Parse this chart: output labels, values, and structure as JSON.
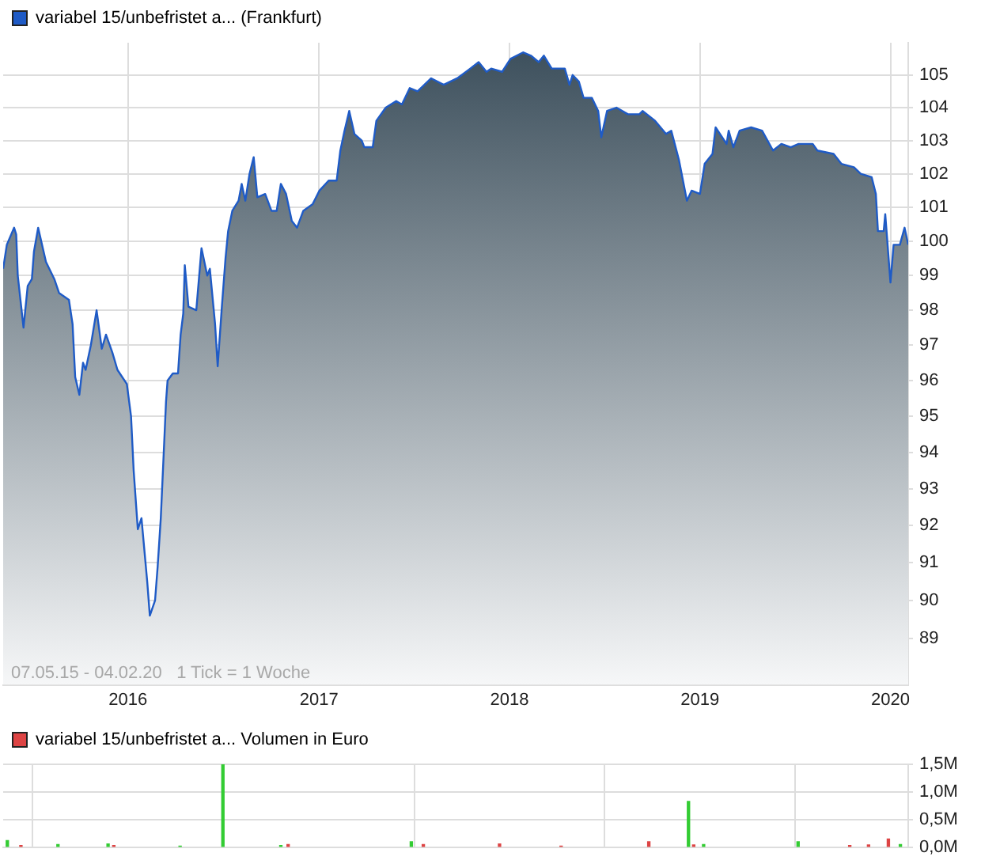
{
  "chart_data": [
    {
      "type": "area",
      "log": "y",
      "grid": true,
      "legend": "top left",
      "xlim": [
        "2015-05-07",
        "2020-02-04"
      ],
      "xticks": [
        {
          "value": "2016-01-01",
          "label": "2016"
        },
        {
          "value": "2017-01-01",
          "label": "2017"
        },
        {
          "value": "2018-01-01",
          "label": "2018"
        },
        {
          "value": "2019-01-01",
          "label": "2019"
        },
        {
          "value": "2020-01-01",
          "label": "2020"
        }
      ],
      "ylim": [
        87.8,
        106
      ],
      "yticks": [
        89,
        90,
        91,
        92,
        93,
        94,
        95,
        96,
        97,
        98,
        99,
        100,
        101,
        102,
        103,
        104,
        105
      ],
      "annotations": [
        "07.05.15 - 04.02.20   1 Tick = 1 Woche"
      ],
      "x": [
        "2015-05-07",
        "2015-05-14",
        "2015-05-28",
        "2015-06-01",
        "2015-06-04",
        "2015-06-15",
        "2015-06-23",
        "2015-07-01",
        "2015-07-05",
        "2015-07-13",
        "2015-07-28",
        "2015-08-13",
        "2015-08-22",
        "2015-09-10",
        "2015-09-17",
        "2015-09-22",
        "2015-09-30",
        "2015-10-07",
        "2015-10-12",
        "2015-10-22",
        "2015-11-02",
        "2015-11-12",
        "2015-11-20",
        "2015-12-02",
        "2015-12-12",
        "2015-12-30",
        "2016-01-07",
        "2016-01-12",
        "2016-01-20",
        "2016-01-27",
        "2016-02-07",
        "2016-02-12",
        "2016-02-22",
        "2016-02-27",
        "2016-03-04",
        "2016-03-10",
        "2016-03-14",
        "2016-03-17",
        "2016-03-27",
        "2016-04-06",
        "2016-04-11",
        "2016-04-16",
        "2016-04-19",
        "2016-04-26",
        "2016-05-11",
        "2016-05-21",
        "2016-06-01",
        "2016-06-06",
        "2016-06-16",
        "2016-06-21",
        "2016-06-29",
        "2016-07-06",
        "2016-07-11",
        "2016-07-19",
        "2016-07-31",
        "2016-08-06",
        "2016-08-13",
        "2016-08-21",
        "2016-08-29",
        "2016-09-05",
        "2016-09-20",
        "2016-10-02",
        "2016-10-12",
        "2016-10-20",
        "2016-10-30",
        "2016-11-10",
        "2016-11-20",
        "2016-12-02",
        "2016-12-20",
        "2017-01-02",
        "2017-01-20",
        "2017-02-04",
        "2017-02-11",
        "2017-02-19",
        "2017-02-28",
        "2017-03-10",
        "2017-03-24",
        "2017-03-29",
        "2017-04-14",
        "2017-04-21",
        "2017-05-09",
        "2017-05-29",
        "2017-06-09",
        "2017-06-24",
        "2017-07-09",
        "2017-08-04",
        "2017-08-28",
        "2017-09-23",
        "2017-10-18",
        "2017-11-03",
        "2017-11-18",
        "2017-11-27",
        "2017-12-18",
        "2018-01-03",
        "2018-01-27",
        "2018-02-11",
        "2018-02-26",
        "2018-03-08",
        "2018-03-23",
        "2018-04-17",
        "2018-04-26",
        "2018-05-02",
        "2018-05-14",
        "2018-05-23",
        "2018-06-08",
        "2018-06-20",
        "2018-06-26",
        "2018-07-07",
        "2018-07-25",
        "2018-08-16",
        "2018-09-07",
        "2018-09-13",
        "2018-10-07",
        "2018-10-28",
        "2018-11-07",
        "2018-11-22",
        "2018-12-07",
        "2018-12-16",
        "2019-01-01",
        "2019-01-10",
        "2019-01-25",
        "2019-01-31",
        "2019-02-21",
        "2019-02-25",
        "2019-03-06",
        "2019-03-18",
        "2019-04-09",
        "2019-04-30",
        "2019-05-21",
        "2019-06-06",
        "2019-06-24",
        "2019-07-09",
        "2019-08-05",
        "2019-08-14",
        "2019-09-14",
        "2019-09-29",
        "2019-10-23",
        "2019-11-05",
        "2019-11-26",
        "2019-12-04",
        "2019-12-08",
        "2019-12-19",
        "2019-12-22",
        "2020-01-01",
        "2020-01-07",
        "2020-01-19",
        "2020-01-28",
        "2020-02-04"
      ],
      "series": [
        {
          "name": "variabel 15/unbefristet a... (Frankfurt)",
          "color": "#1f5bc6",
          "values": [
            99.2,
            99.9,
            100.4,
            100.2,
            99.0,
            97.5,
            98.7,
            98.9,
            99.7,
            100.4,
            99.4,
            98.9,
            98.5,
            98.3,
            97.6,
            96.1,
            95.6,
            96.5,
            96.3,
            97.0,
            98.0,
            96.9,
            97.3,
            96.8,
            96.3,
            95.9,
            95.0,
            93.5,
            91.9,
            92.2,
            90.5,
            89.6,
            90.0,
            90.9,
            92.2,
            94.1,
            95.4,
            96.0,
            96.2,
            96.2,
            97.3,
            97.9,
            99.3,
            98.1,
            98.0,
            99.8,
            99.0,
            99.2,
            97.6,
            96.4,
            98.1,
            99.5,
            100.3,
            100.9,
            101.2,
            101.7,
            101.2,
            102.0,
            102.5,
            101.3,
            101.4,
            100.9,
            100.9,
            101.7,
            101.4,
            100.6,
            100.4,
            100.9,
            101.1,
            101.5,
            101.8,
            101.8,
            102.7,
            103.3,
            103.9,
            103.2,
            103.0,
            102.8,
            102.8,
            103.6,
            104.0,
            104.2,
            104.1,
            104.6,
            104.5,
            104.9,
            104.7,
            104.9,
            105.2,
            105.4,
            105.1,
            105.2,
            105.1,
            105.5,
            105.7,
            105.6,
            105.4,
            105.6,
            105.2,
            105.2,
            104.7,
            105.0,
            104.8,
            104.3,
            104.3,
            103.9,
            103.1,
            103.9,
            104.0,
            103.8,
            103.8,
            103.9,
            103.6,
            103.2,
            103.3,
            102.4,
            101.2,
            101.5,
            101.4,
            102.3,
            102.6,
            103.4,
            102.9,
            103.3,
            102.8,
            103.3,
            103.4,
            103.3,
            102.7,
            102.9,
            102.8,
            102.9,
            102.9,
            102.7,
            102.6,
            102.3,
            102.2,
            102.0,
            101.9,
            101.4,
            100.3,
            100.3,
            100.8,
            98.8,
            99.9,
            99.9,
            100.4,
            99.9
          ]
        }
      ]
    },
    {
      "type": "bar",
      "grid": true,
      "legend": "top left",
      "tick_labels": "y",
      "xlim": [
        "2015-05-07",
        "2020-02-04"
      ],
      "xticks": [
        {
          "value": "2016-01-01",
          "label": null
        },
        {
          "value": "2017-01-01",
          "label": null
        },
        {
          "value": "2018-01-01",
          "label": null
        },
        {
          "value": "2019-01-01",
          "label": null
        },
        {
          "value": "2020-01-01",
          "label": null
        }
      ],
      "ylim": [
        0,
        1.5
      ],
      "yticks": [
        {
          "value": 0,
          "label": "0,0M"
        },
        {
          "value": 0.5,
          "label": "0,5M"
        },
        {
          "value": 1,
          "label": "1,0M"
        },
        {
          "value": 1.5,
          "label": "1,5M"
        }
      ],
      "x": [
        "2015-05-15",
        "2015-06-10",
        "2015-08-20",
        "2015-11-24",
        "2015-12-05",
        "2016-04-10",
        "2016-07-01",
        "2016-10-20",
        "2016-11-03",
        "2017-06-27",
        "2017-07-20",
        "2017-12-13",
        "2018-04-10",
        "2018-09-25",
        "2018-12-10",
        "2018-12-20",
        "2019-01-08",
        "2019-07-08",
        "2019-10-15",
        "2019-11-20",
        "2019-12-28",
        "2020-01-20"
      ],
      "series": [
        {
          "name": "variabel 15/unbefristet a... Volumen in Euro",
          "color": "#dd4444",
          "colors": [
            "#33cc33",
            "#dd4444",
            "#33cc33",
            "#33cc33",
            "#dd4444",
            "#33cc33",
            "#33cc33",
            "#33cc33",
            "#dd4444",
            "#33cc33",
            "#dd4444",
            "#dd4444",
            "#dd4444",
            "#dd4444",
            "#33cc33",
            "#dd4444",
            "#33cc33",
            "#33cc33",
            "#dd4444",
            "#dd4444",
            "#dd4444",
            "#33cc33"
          ],
          "values": [
            0.12,
            0.03,
            0.05,
            0.06,
            0.03,
            0.02,
            1.5,
            0.03,
            0.05,
            0.1,
            0.05,
            0.06,
            0.02,
            0.1,
            0.83,
            0.04,
            0.05,
            0.1,
            0.03,
            0.04,
            0.15,
            0.05
          ]
        }
      ]
    }
  ]
}
